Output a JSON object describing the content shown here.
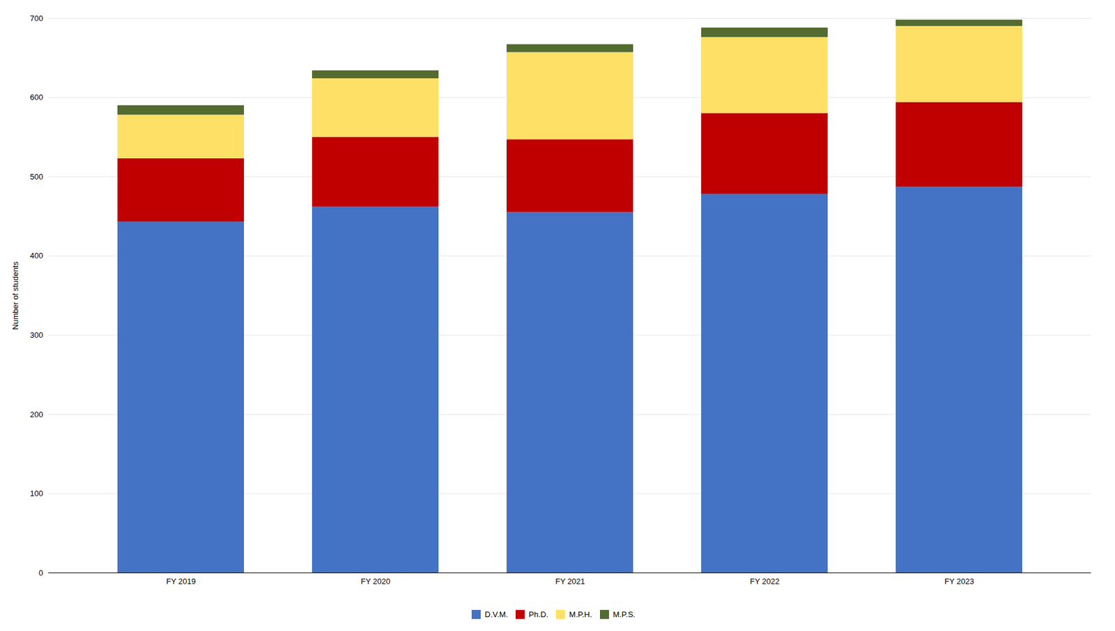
{
  "chart_data": {
    "type": "bar",
    "stacked": true,
    "categories": [
      "FY 2019",
      "FY 2020",
      "FY 2021",
      "FY 2022",
      "FY 2023"
    ],
    "series": [
      {
        "name": "D.V.M.",
        "color": "#4472C4",
        "values": [
          443,
          462,
          455,
          478,
          487
        ]
      },
      {
        "name": "Ph.D.",
        "color": "#C00000",
        "values": [
          80,
          88,
          92,
          102,
          107
        ]
      },
      {
        "name": "M.P.H.",
        "color": "#FFE066",
        "values": [
          55,
          74,
          110,
          96,
          96
        ]
      },
      {
        "name": "M.P.S.",
        "color": "#536B2F",
        "values": [
          12,
          10,
          10,
          12,
          8
        ]
      }
    ],
    "ylabel": "Number of students",
    "ylim": [
      0,
      700
    ],
    "yticks": [
      0,
      100,
      200,
      300,
      400,
      500,
      600,
      700
    ],
    "grid": true,
    "legend": "bottom"
  }
}
